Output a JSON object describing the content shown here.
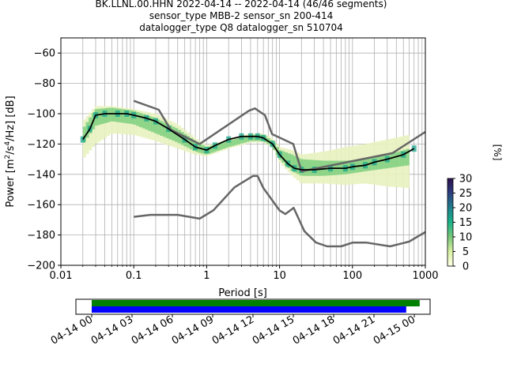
{
  "chart_data": [
    {
      "type": "heatmap",
      "title_lines": [
        "BK.LLNL.00.HHN   2022-04-14 -- 2022-04-14  (46/46 segments)",
        "sensor_type MBB-2 sensor_sn 200-414",
        "datalogger_type Q8 datalogger_sn 510704"
      ],
      "xlabel": "Period [s]",
      "ylabel_parts": [
        "Power [m",
        "2",
        "/s",
        "4",
        "/Hz] [dB]"
      ],
      "x_scale": "log",
      "xlim": [
        0.01,
        1000
      ],
      "ylim": [
        -200,
        -50
      ],
      "x_ticks": [
        0.01,
        0.1,
        1,
        10,
        100,
        1000
      ],
      "x_tick_labels": [
        "0.01",
        "0.1",
        "1",
        "10",
        "100",
        "1000"
      ],
      "y_ticks": [
        -200,
        -180,
        -160,
        -140,
        -120,
        -100,
        -80,
        -60
      ],
      "y_tick_labels": [
        "−200",
        "−180",
        "−160",
        "−140",
        "−120",
        "−100",
        "−80",
        "−60"
      ],
      "grid": true,
      "colorbar": {
        "label": "[%]",
        "range": [
          0,
          30
        ],
        "ticks": [
          0,
          5,
          10,
          15,
          20,
          25,
          30
        ],
        "tick_labels": [
          "0",
          "5",
          "10",
          "15",
          "20",
          "25",
          "30"
        ],
        "colors": [
          "#ffffe5",
          "#d9f0a3",
          "#78c679",
          "#1ab38a",
          "#1f7f8c",
          "#2d3f80",
          "#2b0f4c"
        ]
      },
      "colors": {
        "median": "#000000",
        "noise_models": "#666666",
        "density_light": "#e8f2bf",
        "density_mid": "#7fcf7f",
        "density_high": "#1aa58a"
      },
      "median_curve": {
        "x": [
          0.02,
          0.025,
          0.03,
          0.04,
          0.06,
          0.08,
          0.1,
          0.15,
          0.2,
          0.3,
          0.5,
          0.7,
          1.0,
          1.3,
          2,
          3,
          4,
          5,
          6,
          8,
          10,
          13,
          16,
          20,
          30,
          50,
          80,
          100,
          150,
          200,
          300,
          500,
          700
        ],
        "y": [
          -117,
          -110,
          -101,
          -100,
          -100,
          -100,
          -101,
          -103,
          -105,
          -110,
          -117,
          -122,
          -124,
          -121,
          -117,
          -115,
          -115,
          -115,
          -116,
          -120,
          -127,
          -133,
          -136,
          -137,
          -137,
          -136,
          -136,
          -135,
          -134,
          -132,
          -130,
          -127,
          -123
        ]
      },
      "high_noise_model": {
        "x": [
          0.1,
          0.22,
          0.32,
          0.8,
          3.8,
          4.6,
          6.3,
          7.9,
          15.4,
          20,
          354.8,
          1000
        ],
        "y": [
          -91.5,
          -97.4,
          -110.5,
          -120,
          -98,
          -96.5,
          -101,
          -113.5,
          -120,
          -138,
          -126,
          -112
        ]
      },
      "low_noise_model": {
        "x": [
          0.1,
          0.17,
          0.4,
          0.8,
          1.24,
          2.4,
          4.3,
          5,
          6,
          10,
          12,
          15.6,
          21.9,
          31.6,
          45,
          70,
          101,
          154,
          328,
          600,
          1000
        ],
        "y": [
          -168,
          -166.7,
          -166.7,
          -169.2,
          -163.7,
          -148.6,
          -141.1,
          -141.1,
          -149,
          -163.8,
          -166.2,
          -162.1,
          -177.5,
          -185,
          -187.5,
          -187.5,
          -185,
          -185,
          -187.5,
          -184.4,
          -178
        ]
      },
      "density_bands": [
        {
          "level": "light",
          "x": [
            0.02,
            0.03,
            0.05,
            0.1,
            0.2,
            0.4,
            0.7,
            1,
            2,
            4,
            6,
            8,
            10,
            15,
            20,
            40,
            80,
            150,
            300,
            600
          ],
          "upper": [
            -105,
            -95,
            -95,
            -97,
            -100,
            -107,
            -116,
            -121,
            -117,
            -113,
            -113,
            -116,
            -122,
            -124,
            -127,
            -125,
            -122,
            -120,
            -117,
            -114
          ],
          "lower": [
            -130,
            -120,
            -113,
            -114,
            -118,
            -123,
            -127,
            -128,
            -123,
            -119,
            -119,
            -122,
            -132,
            -141,
            -146,
            -146,
            -147,
            -146,
            -148,
            -149
          ]
        },
        {
          "level": "mid",
          "x": [
            0.02,
            0.03,
            0.05,
            0.1,
            0.2,
            0.4,
            0.7,
            1,
            2,
            4,
            6,
            8,
            10,
            15,
            20,
            40,
            80,
            150,
            300,
            600
          ],
          "upper": [
            -110,
            -97,
            -96,
            -98,
            -103,
            -110,
            -118,
            -122,
            -118,
            -114,
            -114,
            -118,
            -124,
            -127,
            -130,
            -131,
            -131,
            -130,
            -127,
            -123
          ],
          "lower": [
            -120,
            -108,
            -105,
            -107,
            -113,
            -119,
            -125,
            -127,
            -122,
            -118,
            -118,
            -122,
            -130,
            -138,
            -141,
            -141,
            -140,
            -138,
            -136,
            -134
          ]
        }
      ]
    },
    {
      "type": "table",
      "title": "",
      "x_scale": "time",
      "xlim": [
        "2022-04-14 00",
        "2022-04-15 00"
      ],
      "x_ticks": [
        "04-14 00",
        "04-14 03",
        "04-14 06",
        "04-14 09",
        "04-14 12",
        "04-14 15",
        "04-14 18",
        "04-14 21",
        "04-15 00"
      ],
      "coverage_bars": [
        {
          "color": "#008000",
          "start_hour": 0.0,
          "end_hour": 24.4
        },
        {
          "color": "#0000ff",
          "start_hour": 0.0,
          "end_hour": 23.4
        }
      ]
    }
  ]
}
